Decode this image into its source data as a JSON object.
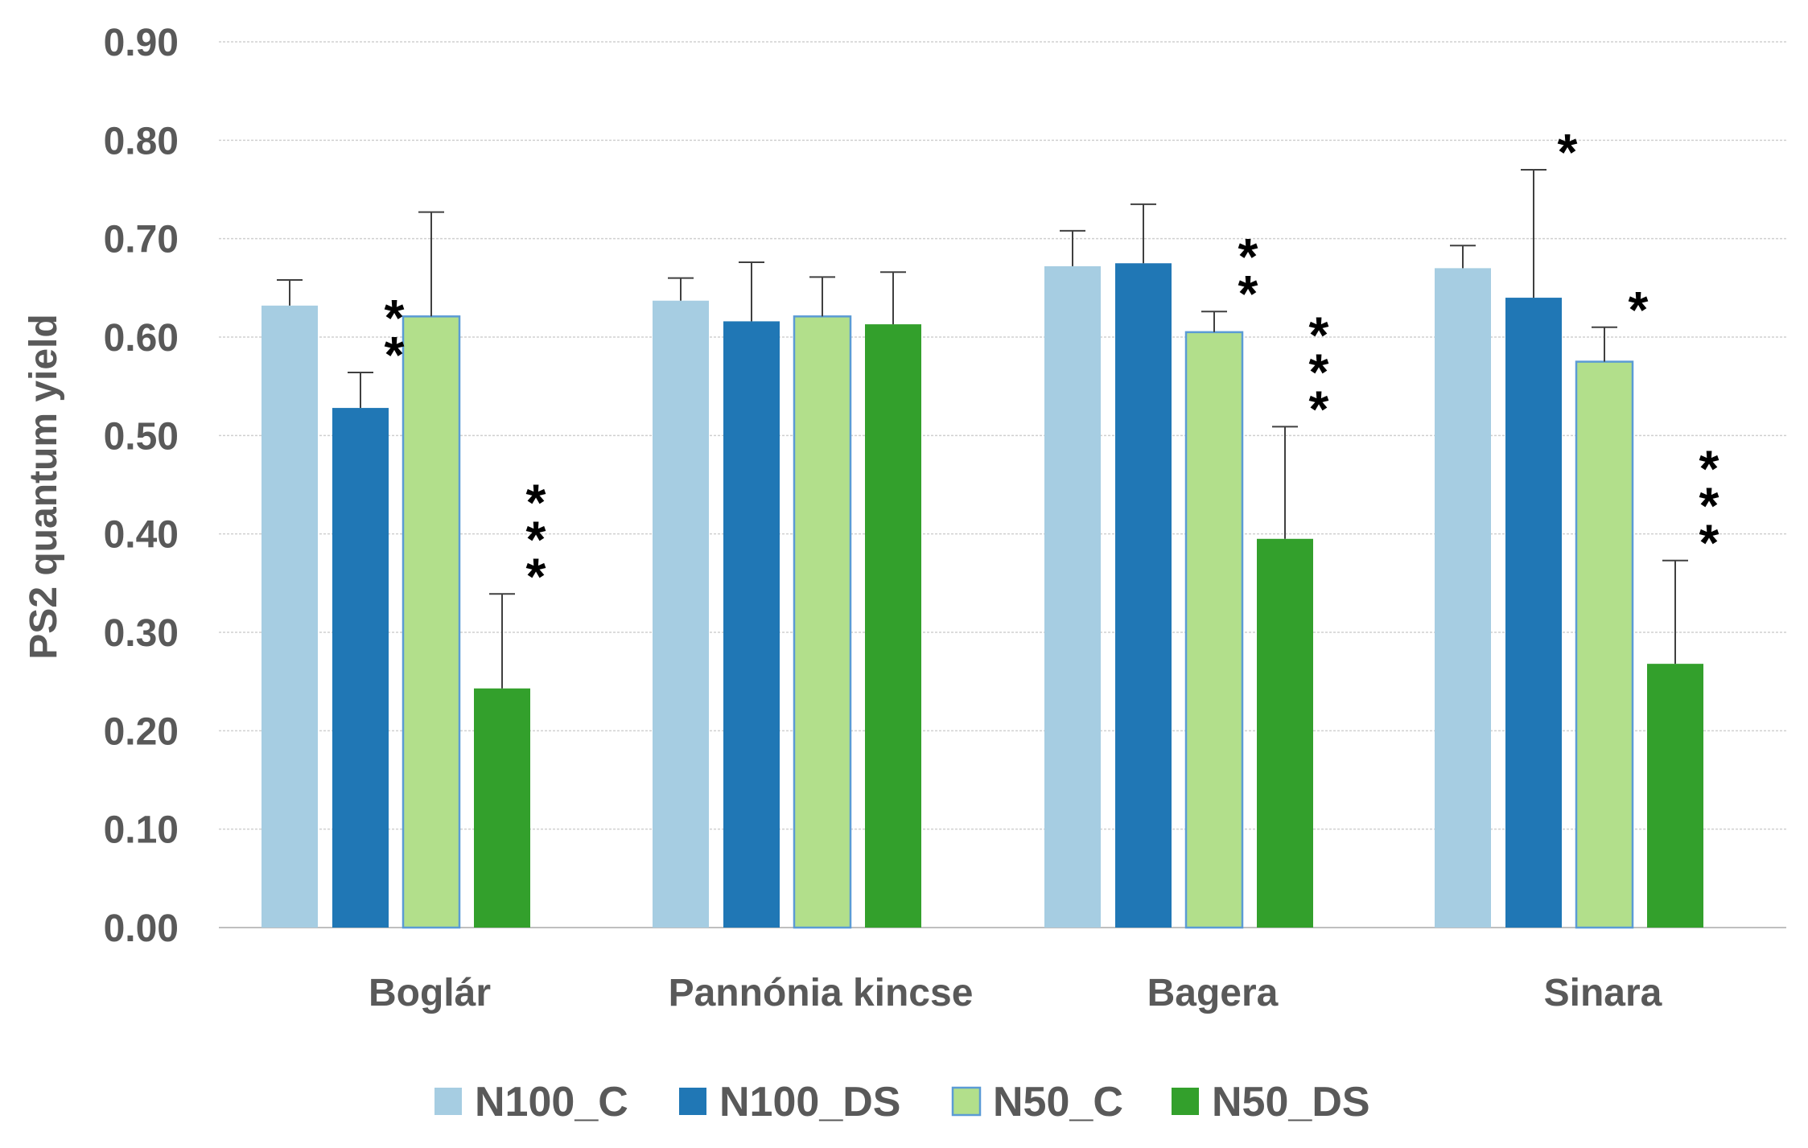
{
  "chart_data": {
    "type": "bar",
    "title": "",
    "xlabel": "",
    "ylabel": "PS2 quantum yield",
    "ylim": [
      0,
      0.9
    ],
    "yticks": [
      "0.00",
      "0.10",
      "0.20",
      "0.30",
      "0.40",
      "0.50",
      "0.60",
      "0.70",
      "0.80",
      "0.90"
    ],
    "grid": true,
    "legend_position": "bottom",
    "categories": [
      "Boglár",
      "Pannónia kincse",
      "Bagera",
      "Sinara"
    ],
    "series": [
      {
        "name": "N100_C",
        "color": "#a6cde2",
        "values": [
          0.632,
          0.637,
          0.672,
          0.67
        ],
        "errors": [
          0.026,
          0.023,
          0.036,
          0.023
        ],
        "significance": [
          "",
          "",
          "",
          ""
        ]
      },
      {
        "name": "N100_DS",
        "color": "#2077b5",
        "values": [
          0.528,
          0.616,
          0.675,
          0.64
        ],
        "errors": [
          0.036,
          0.06,
          0.06,
          0.13
        ],
        "significance": [
          "**",
          "",
          "",
          "*"
        ]
      },
      {
        "name": "N50_C",
        "color": "#b2df8b",
        "values": [
          0.621,
          0.621,
          0.605,
          0.575
        ],
        "errors": [
          0.106,
          0.04,
          0.021,
          0.035
        ],
        "significance": [
          "",
          "",
          "**",
          "*"
        ]
      },
      {
        "name": "N50_DS",
        "color": "#33a02c",
        "values": [
          0.243,
          0.613,
          0.395,
          0.268
        ],
        "errors": [
          0.096,
          0.053,
          0.114,
          0.105
        ],
        "significance": [
          "***",
          "",
          "***",
          "***"
        ]
      }
    ]
  }
}
